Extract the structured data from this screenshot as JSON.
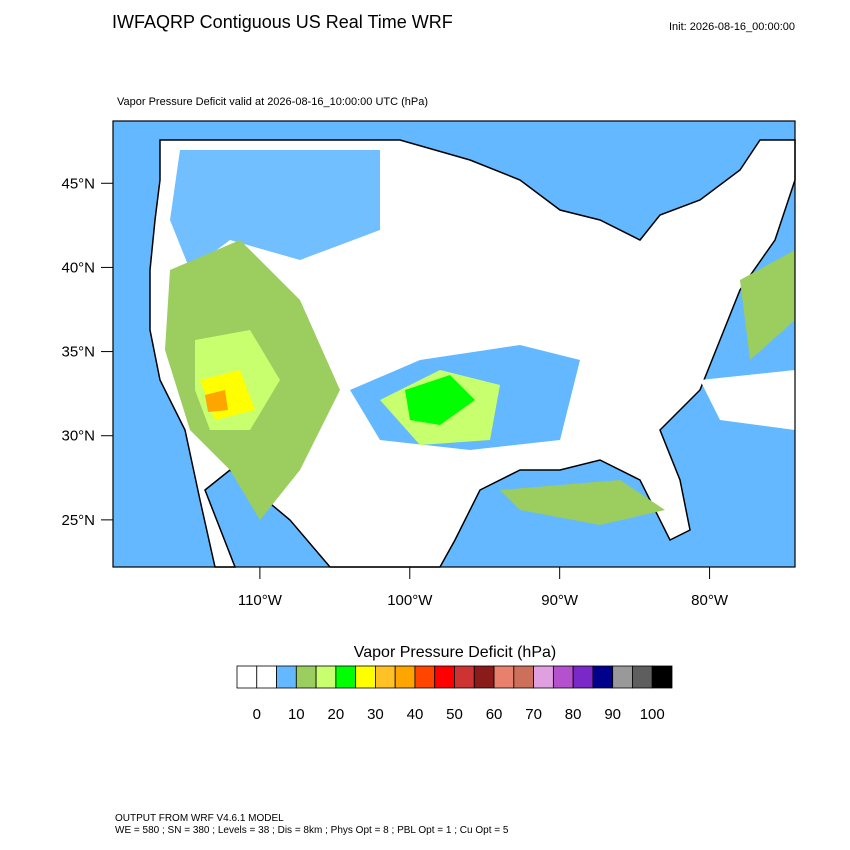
{
  "header": {
    "title": "IWFAQRP Contiguous US Real Time WRF",
    "init": "Init: 2026-08-16_00:00:00"
  },
  "map": {
    "subtitle": "Vapor Pressure Deficit valid at 2026-08-16_10:00:00 UTC   (hPa)",
    "lonlim": [
      -119.8,
      -74.3
    ],
    "latlim": [
      22.2,
      48.7
    ],
    "lat_ticks": [
      {
        "value": 45,
        "label": "45°N"
      },
      {
        "value": 40,
        "label": "40°N"
      },
      {
        "value": 35,
        "label": "35°N"
      },
      {
        "value": 30,
        "label": "30°N"
      },
      {
        "value": 25,
        "label": "25°N"
      }
    ],
    "lon_ticks": [
      {
        "value": -110,
        "label": "110°W"
      },
      {
        "value": -100,
        "label": "100°W"
      },
      {
        "value": -90,
        "label": "90°W"
      },
      {
        "value": -80,
        "label": "80°W"
      }
    ]
  },
  "colorbar": {
    "title": "Vapor Pressure Deficit  (hPa)",
    "colors": [
      "#ffffff",
      "#ffffff",
      "#63b8ff",
      "#9bcd5f",
      "#c8ff6e",
      "#00ff00",
      "#ffff00",
      "#ffc125",
      "#ffa500",
      "#ff4500",
      "#ff0000",
      "#cd3333",
      "#8b1a1a",
      "#e9806e",
      "#cd6f5a",
      "#e0a0e0",
      "#b452cd",
      "#7b28c8",
      "#00008b",
      "#999999",
      "#5e5e5e",
      "#000000"
    ],
    "ticks": [
      0,
      10,
      20,
      30,
      40,
      50,
      60,
      70,
      80,
      90,
      100
    ]
  },
  "footer": {
    "line1": "OUTPUT FROM WRF V4.6.1 MODEL",
    "line2": "WE = 580 ; SN = 380 ; Levels = 38 ; Dis = 8km ; Phys Opt = 8 ; PBL Opt = 1 ; Cu Opt = 5"
  }
}
